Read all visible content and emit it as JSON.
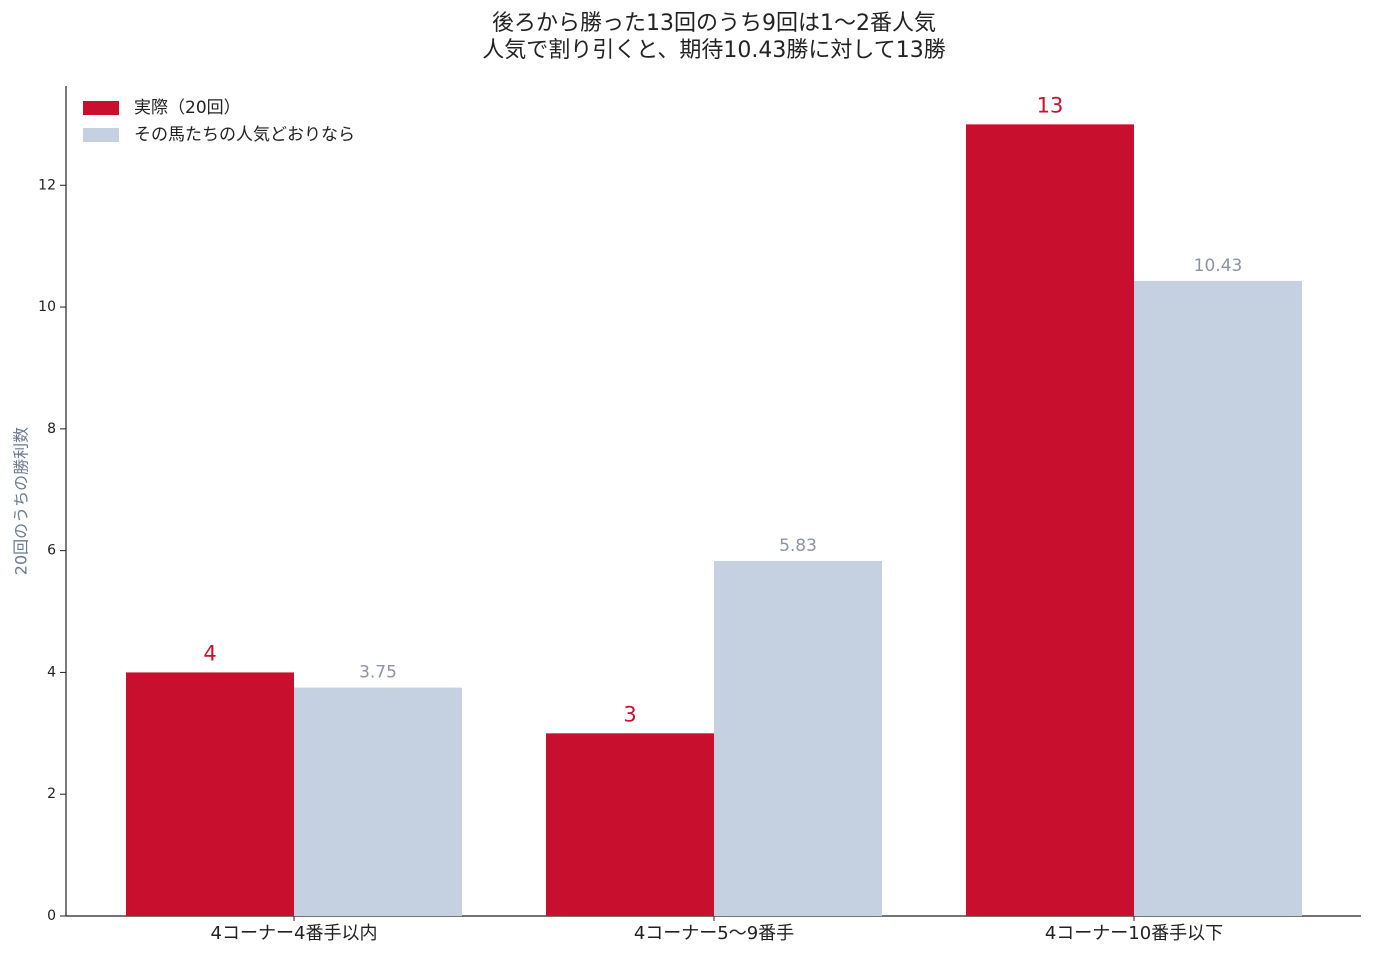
{
  "chart_data": {
    "type": "grouped-bar",
    "title": [
      "後ろから勝った13回のうち9回は1〜2番人気",
      "人気で割り引くと、期待10.43勝に対して13勝"
    ],
    "y_label": "20回のうちの勝利数",
    "categories": [
      "4コーナー4番手以内",
      "4コーナー5〜9番手",
      "4コーナー10番手以下"
    ],
    "series": [
      {
        "name": "実際（20回）",
        "color": "#c8102e",
        "label_color": "#c8102e",
        "values": [
          4,
          3,
          13
        ]
      },
      {
        "name": "その馬たちの人気どおりなら",
        "color": "#c5d1e0",
        "label_color": "#8a94a6",
        "values": [
          3.75,
          5.83,
          10.43
        ]
      }
    ],
    "ylim": [
      0,
      13.63
    ],
    "yticks": [
      0,
      2,
      4,
      6,
      8,
      10,
      12
    ],
    "legend": "upper left",
    "grid": false
  }
}
